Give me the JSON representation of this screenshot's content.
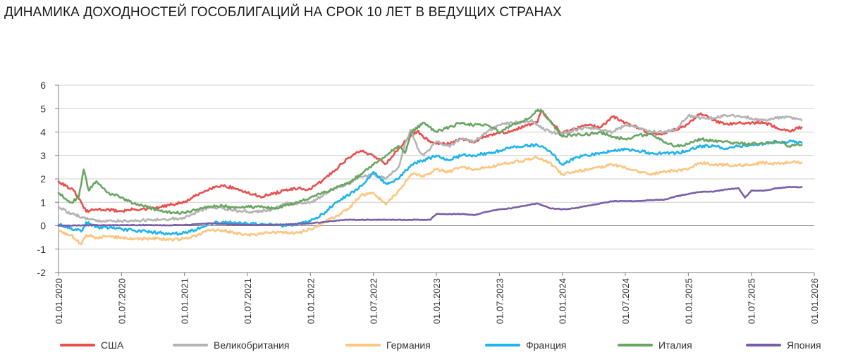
{
  "chart_data": {
    "type": "line",
    "title": "ДИНАМИКА ДОХОДНОСТЕЙ ГОСОБЛИГАЦИЙ НА СРОК 10 ЛЕТ В ВЕДУЩИХ СТРАНАХ",
    "xlabel": "",
    "ylabel": "",
    "ylim": [
      -2,
      6
    ],
    "y_ticks": [
      "6",
      "5",
      "4",
      "3",
      "2",
      "1",
      "0",
      "-1",
      "-2"
    ],
    "y_tick_values": [
      6,
      5,
      4,
      3,
      2,
      1,
      0,
      -1,
      -2
    ],
    "x_tick_labels": [
      "01.01.2020",
      "01.07.2020",
      "01.01.2021",
      "01.07.2021",
      "01.01.2022",
      "01.07.2022",
      "01.01.2023",
      "01.07.2023",
      "01.01.2024",
      "01.07.2024",
      "01.01.2025",
      "01.07.2025",
      "01.01.2026"
    ],
    "x_tick_values": [
      0,
      0.5,
      1,
      1.5,
      2,
      2.5,
      3,
      3.5,
      4,
      4.5,
      5,
      5.5,
      6
    ],
    "xlim": [
      0,
      6
    ],
    "x_unit": "years since 01.01.2020",
    "grid": true,
    "legend_position": "bottom",
    "series": [
      {
        "name": "США",
        "color": "#e8504f",
        "x": [
          0,
          0.06,
          0.12,
          0.18,
          0.22,
          0.3,
          0.4,
          0.5,
          0.6,
          0.7,
          0.8,
          0.9,
          1.0,
          1.1,
          1.2,
          1.3,
          1.4,
          1.5,
          1.6,
          1.7,
          1.8,
          1.9,
          2.0,
          2.1,
          2.2,
          2.3,
          2.4,
          2.5,
          2.6,
          2.7,
          2.8,
          2.85,
          2.9,
          3.0,
          3.1,
          3.2,
          3.3,
          3.4,
          3.5,
          3.6,
          3.7,
          3.8,
          3.83,
          3.9,
          4.0,
          4.1,
          4.2,
          4.3,
          4.4,
          4.5,
          4.6,
          4.7,
          4.8,
          4.9,
          5.0,
          5.1,
          5.2,
          5.3,
          5.4,
          5.5,
          5.6,
          5.7,
          5.8,
          5.9
        ],
        "values": [
          1.9,
          1.7,
          1.5,
          1.0,
          0.6,
          0.7,
          0.68,
          0.62,
          0.7,
          0.7,
          0.78,
          0.9,
          1.0,
          1.3,
          1.6,
          1.72,
          1.6,
          1.4,
          1.25,
          1.35,
          1.52,
          1.58,
          1.55,
          1.95,
          2.4,
          2.9,
          3.2,
          3.0,
          2.65,
          3.3,
          3.85,
          4.05,
          3.75,
          3.5,
          3.5,
          3.7,
          3.55,
          3.85,
          3.95,
          4.05,
          4.25,
          4.4,
          4.9,
          4.5,
          3.95,
          4.15,
          4.3,
          4.2,
          4.65,
          4.4,
          4.2,
          3.9,
          3.95,
          4.1,
          4.35,
          4.8,
          4.5,
          4.35,
          4.4,
          4.4,
          4.4,
          4.2,
          4.05,
          4.2
        ]
      },
      {
        "name": "Великобритания",
        "color": "#b4b4b4",
        "x": [
          0,
          0.1,
          0.2,
          0.3,
          0.4,
          0.5,
          0.6,
          0.7,
          0.8,
          0.9,
          1.0,
          1.1,
          1.2,
          1.3,
          1.4,
          1.5,
          1.6,
          1.7,
          1.8,
          1.9,
          2.0,
          2.1,
          2.2,
          2.3,
          2.4,
          2.5,
          2.6,
          2.7,
          2.75,
          2.8,
          2.85,
          2.9,
          3.0,
          3.1,
          3.2,
          3.3,
          3.4,
          3.5,
          3.6,
          3.7,
          3.75,
          3.8,
          3.9,
          4.0,
          4.1,
          4.2,
          4.3,
          4.4,
          4.5,
          4.6,
          4.7,
          4.8,
          4.9,
          5.0,
          5.1,
          5.2,
          5.3,
          5.4,
          5.5,
          5.6,
          5.7,
          5.8,
          5.9
        ],
        "values": [
          0.8,
          0.5,
          0.35,
          0.2,
          0.22,
          0.2,
          0.2,
          0.25,
          0.25,
          0.3,
          0.32,
          0.6,
          0.8,
          0.75,
          0.65,
          0.6,
          0.6,
          0.7,
          0.95,
          0.95,
          1.0,
          1.3,
          1.6,
          1.8,
          2.1,
          2.2,
          2.0,
          2.5,
          3.5,
          4.1,
          3.3,
          3.0,
          3.6,
          3.4,
          3.7,
          3.6,
          4.0,
          4.3,
          4.4,
          4.4,
          4.5,
          4.3,
          4.0,
          3.9,
          4.1,
          4.2,
          4.1,
          4.0,
          4.3,
          4.2,
          4.0,
          4.0,
          4.1,
          4.7,
          4.6,
          4.6,
          4.7,
          4.7,
          4.6,
          4.5,
          4.6,
          4.65,
          4.5
        ]
      },
      {
        "name": "Германия",
        "color": "#fbc681",
        "x": [
          0,
          0.1,
          0.18,
          0.22,
          0.3,
          0.4,
          0.5,
          0.6,
          0.7,
          0.8,
          0.9,
          1.0,
          1.1,
          1.2,
          1.3,
          1.4,
          1.5,
          1.6,
          1.7,
          1.8,
          1.9,
          2.0,
          2.1,
          2.2,
          2.3,
          2.4,
          2.5,
          2.6,
          2.7,
          2.8,
          2.9,
          3.0,
          3.1,
          3.2,
          3.3,
          3.4,
          3.5,
          3.6,
          3.7,
          3.8,
          3.9,
          4.0,
          4.1,
          4.2,
          4.3,
          4.4,
          4.5,
          4.6,
          4.7,
          4.8,
          4.9,
          5.0,
          5.1,
          5.2,
          5.3,
          5.4,
          5.5,
          5.6,
          5.7,
          5.8,
          5.9
        ],
        "values": [
          -0.2,
          -0.4,
          -0.8,
          -0.4,
          -0.5,
          -0.45,
          -0.5,
          -0.55,
          -0.55,
          -0.55,
          -0.6,
          -0.55,
          -0.4,
          -0.2,
          -0.2,
          -0.3,
          -0.4,
          -0.35,
          -0.25,
          -0.3,
          -0.3,
          -0.15,
          0.1,
          0.4,
          0.7,
          1.3,
          1.4,
          0.9,
          1.5,
          2.2,
          2.1,
          2.4,
          2.3,
          2.5,
          2.4,
          2.5,
          2.6,
          2.7,
          2.8,
          2.9,
          2.7,
          2.2,
          2.3,
          2.4,
          2.5,
          2.6,
          2.5,
          2.3,
          2.2,
          2.3,
          2.35,
          2.4,
          2.7,
          2.6,
          2.6,
          2.6,
          2.6,
          2.7,
          2.65,
          2.7,
          2.7
        ]
      },
      {
        "name": "Франция",
        "color": "#1eb4ec",
        "x": [
          0,
          0.1,
          0.18,
          0.22,
          0.3,
          0.4,
          0.5,
          0.6,
          0.7,
          0.8,
          0.9,
          1.0,
          1.1,
          1.2,
          1.3,
          1.4,
          1.5,
          1.6,
          1.7,
          1.8,
          1.9,
          2.0,
          2.1,
          2.2,
          2.3,
          2.4,
          2.5,
          2.6,
          2.7,
          2.8,
          2.9,
          3.0,
          3.1,
          3.2,
          3.3,
          3.4,
          3.5,
          3.6,
          3.7,
          3.8,
          3.9,
          4.0,
          4.1,
          4.2,
          4.3,
          4.4,
          4.5,
          4.6,
          4.7,
          4.8,
          4.9,
          5.0,
          5.1,
          5.2,
          5.3,
          5.4,
          5.5,
          5.6,
          5.7,
          5.8,
          5.9
        ],
        "values": [
          0.05,
          -0.1,
          -0.25,
          0.15,
          -0.05,
          -0.1,
          -0.15,
          -0.2,
          -0.25,
          -0.3,
          -0.35,
          -0.3,
          -0.15,
          0.1,
          0.15,
          0.15,
          0.1,
          0.05,
          0.05,
          0.0,
          0.1,
          0.2,
          0.5,
          1.0,
          1.3,
          1.7,
          2.3,
          1.8,
          2.0,
          2.6,
          2.8,
          3.0,
          2.8,
          3.0,
          3.0,
          3.1,
          3.2,
          3.35,
          3.4,
          3.45,
          3.2,
          2.6,
          2.9,
          3.0,
          3.1,
          3.2,
          3.25,
          3.2,
          3.1,
          3.1,
          3.1,
          3.2,
          3.4,
          3.4,
          3.3,
          3.4,
          3.45,
          3.5,
          3.55,
          3.6,
          3.55
        ]
      },
      {
        "name": "Италия",
        "color": "#6aa564",
        "x": [
          0,
          0.1,
          0.16,
          0.2,
          0.24,
          0.3,
          0.4,
          0.5,
          0.6,
          0.7,
          0.8,
          0.9,
          1.0,
          1.1,
          1.2,
          1.3,
          1.4,
          1.5,
          1.6,
          1.7,
          1.8,
          1.9,
          2.0,
          2.1,
          2.2,
          2.3,
          2.4,
          2.5,
          2.6,
          2.7,
          2.75,
          2.8,
          2.9,
          3.0,
          3.1,
          3.2,
          3.3,
          3.4,
          3.5,
          3.6,
          3.7,
          3.8,
          3.83,
          3.9,
          4.0,
          4.1,
          4.2,
          4.3,
          4.4,
          4.5,
          4.6,
          4.7,
          4.8,
          4.9,
          5.0,
          5.1,
          5.2,
          5.3,
          5.4,
          5.5,
          5.6,
          5.7,
          5.8,
          5.9
        ],
        "values": [
          1.4,
          1.0,
          1.2,
          2.4,
          1.5,
          1.9,
          1.4,
          1.2,
          0.95,
          0.8,
          0.65,
          0.55,
          0.55,
          0.7,
          0.8,
          0.85,
          0.75,
          0.8,
          0.8,
          0.75,
          0.85,
          1.0,
          1.2,
          1.4,
          1.6,
          1.8,
          2.2,
          2.6,
          3.0,
          3.4,
          3.1,
          4.0,
          4.4,
          4.0,
          4.2,
          4.4,
          4.3,
          4.3,
          4.0,
          4.3,
          4.5,
          4.9,
          4.95,
          4.5,
          3.8,
          3.9,
          3.9,
          4.0,
          3.8,
          3.7,
          3.85,
          3.9,
          3.6,
          3.4,
          3.5,
          3.7,
          3.6,
          3.6,
          3.5,
          3.5,
          3.5,
          3.6,
          3.4,
          3.45
        ]
      },
      {
        "name": "Япония",
        "color": "#7b5fa8",
        "x": [
          0,
          0.2,
          0.4,
          0.6,
          0.8,
          1.0,
          1.2,
          1.4,
          1.6,
          1.8,
          2.0,
          2.1,
          2.2,
          2.3,
          2.4,
          2.6,
          2.8,
          2.95,
          3.0,
          3.05,
          3.2,
          3.3,
          3.4,
          3.5,
          3.6,
          3.7,
          3.8,
          3.9,
          4.0,
          4.1,
          4.2,
          4.3,
          4.4,
          4.5,
          4.6,
          4.7,
          4.8,
          4.9,
          5.0,
          5.1,
          5.2,
          5.3,
          5.4,
          5.45,
          5.5,
          5.6,
          5.7,
          5.8,
          5.9
        ],
        "values": [
          0.0,
          0.02,
          0.02,
          0.03,
          0.02,
          0.03,
          0.1,
          0.05,
          0.03,
          0.05,
          0.1,
          0.15,
          0.22,
          0.25,
          0.25,
          0.25,
          0.25,
          0.25,
          0.5,
          0.5,
          0.5,
          0.45,
          0.6,
          0.7,
          0.75,
          0.85,
          0.95,
          0.75,
          0.7,
          0.75,
          0.85,
          0.95,
          1.05,
          1.05,
          1.05,
          1.1,
          1.1,
          1.25,
          1.35,
          1.45,
          1.45,
          1.55,
          1.6,
          1.2,
          1.5,
          1.5,
          1.6,
          1.65,
          1.65
        ]
      }
    ]
  }
}
